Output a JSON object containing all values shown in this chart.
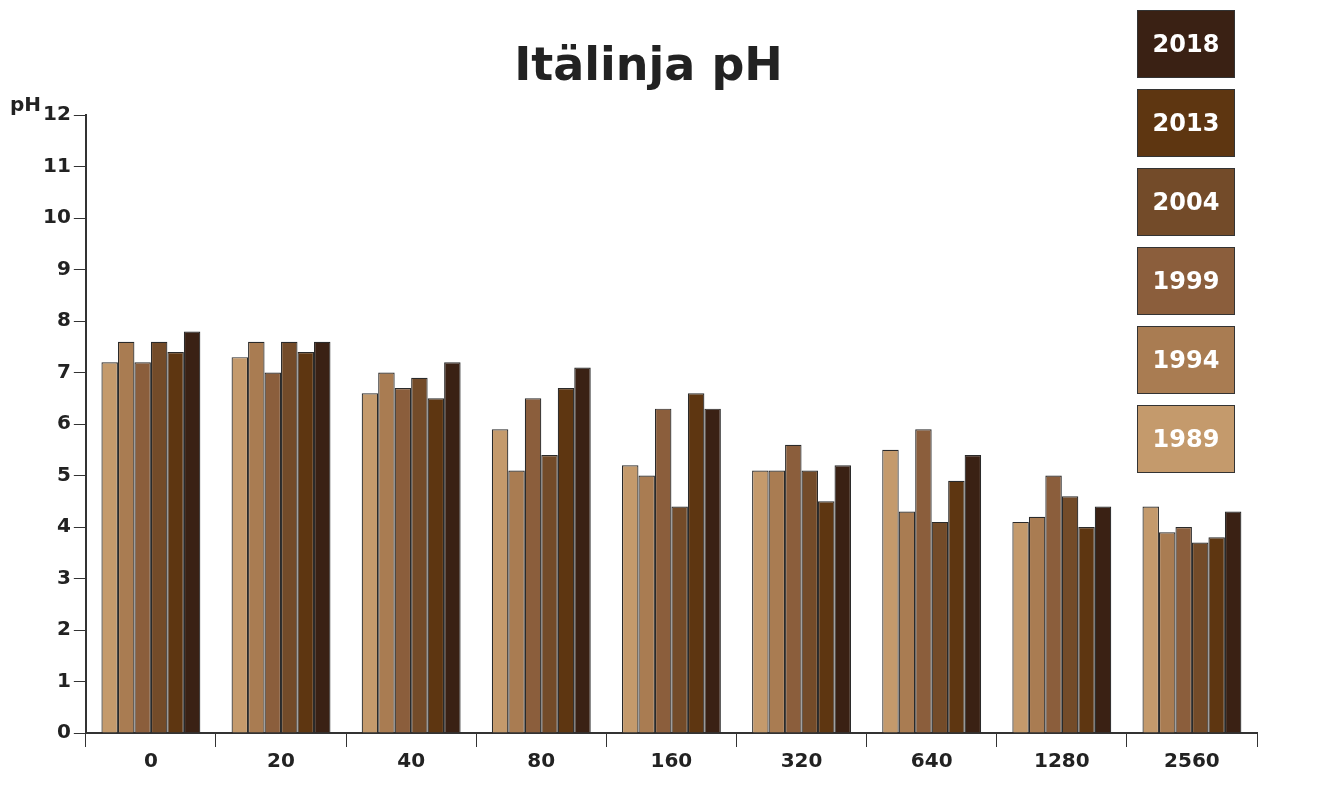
{
  "chart_data": {
    "type": "bar",
    "title": "Itälinja pH",
    "ylabel": "pH",
    "categories": [
      "0",
      "20",
      "40",
      "80",
      "160",
      "320",
      "640",
      "1280",
      "2560"
    ],
    "series": [
      {
        "name": "1989",
        "color": "#c49a6c",
        "values": [
          7.2,
          7.3,
          6.6,
          5.9,
          5.2,
          5.1,
          5.5,
          4.1,
          4.4
        ]
      },
      {
        "name": "1994",
        "color": "#a97c52",
        "values": [
          7.6,
          7.6,
          7.0,
          5.1,
          5.0,
          5.1,
          4.3,
          4.2,
          3.9
        ]
      },
      {
        "name": "1999",
        "color": "#8b5e3c",
        "values": [
          7.2,
          7.0,
          6.7,
          6.5,
          6.3,
          5.6,
          5.9,
          5.0,
          4.0
        ]
      },
      {
        "name": "2004",
        "color": "#734b29",
        "values": [
          7.6,
          7.6,
          6.9,
          5.4,
          4.4,
          5.1,
          4.1,
          4.6,
          3.7
        ]
      },
      {
        "name": "2013",
        "color": "#5e3611",
        "values": [
          7.4,
          7.4,
          6.5,
          6.7,
          6.6,
          4.5,
          4.9,
          4.0,
          3.8
        ]
      },
      {
        "name": "2018",
        "color": "#3a2114",
        "values": [
          7.8,
          7.6,
          7.2,
          7.1,
          6.3,
          5.2,
          5.4,
          4.4,
          4.3
        ]
      }
    ],
    "ylim": [
      0,
      12
    ],
    "yticks": [
      0,
      1,
      2,
      3,
      4,
      5,
      6,
      7,
      8,
      9,
      10,
      11,
      12
    ],
    "grid": false,
    "legend": "top right"
  }
}
